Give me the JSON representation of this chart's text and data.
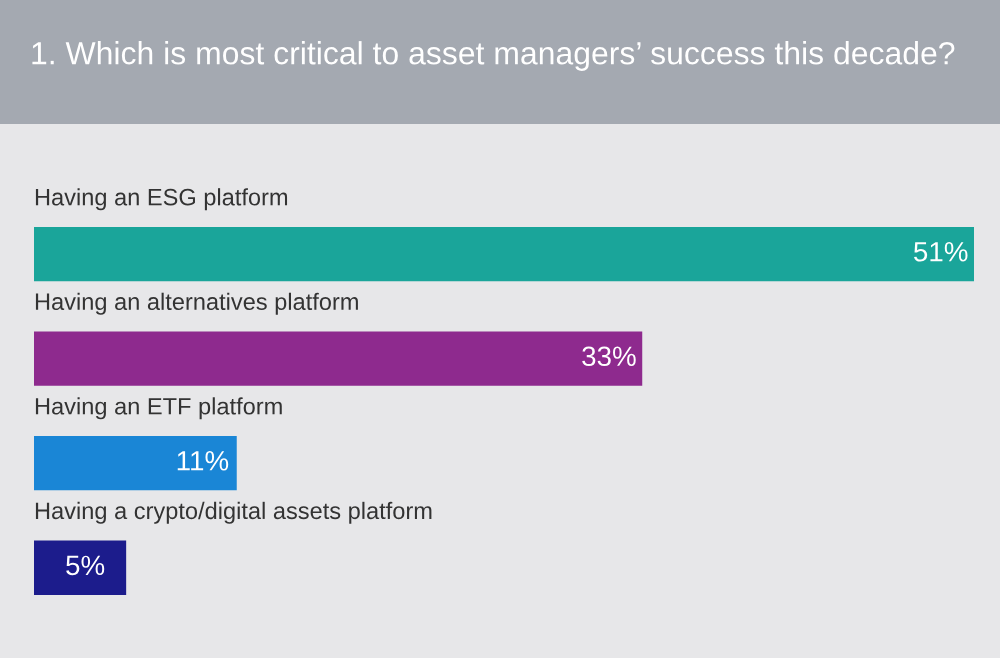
{
  "chart_data": {
    "type": "bar",
    "orientation": "horizontal",
    "title": "1. Which is most critical to asset managers’ success this decade?",
    "categories": [
      "Having an ESG platform",
      "Having an alternatives platform",
      "Having an ETF platform",
      "Having a crypto/digital assets platform"
    ],
    "values": [
      51,
      33,
      11,
      5
    ],
    "colors": [
      "#1aa59a",
      "#8e2a8e",
      "#1a86d6",
      "#1c1c8c"
    ],
    "value_labels": [
      "51%",
      "33%",
      "11%",
      "5%"
    ]
  }
}
